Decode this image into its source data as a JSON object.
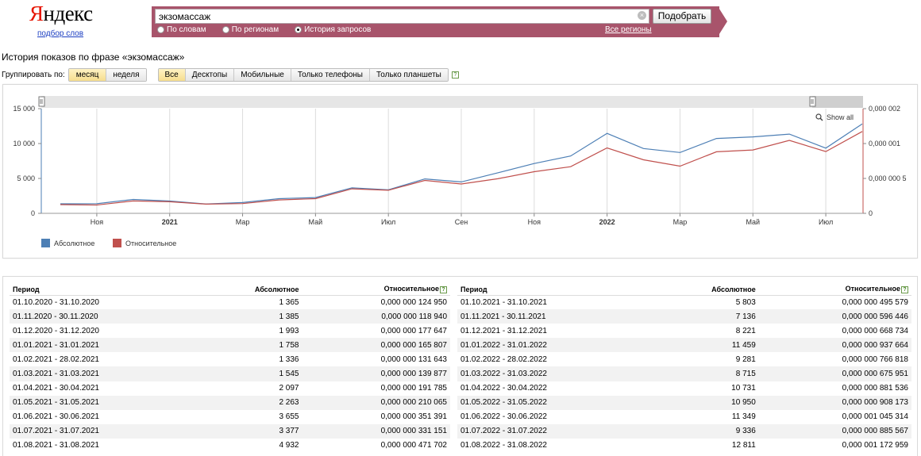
{
  "logo": {
    "text_first": "Я",
    "text_rest": "ндекс",
    "subtitle": "подбор слов"
  },
  "search": {
    "value": "экзомассаж",
    "button": "Подобрать",
    "clear_icon": "×",
    "radios": [
      {
        "label": "По словам",
        "selected": false
      },
      {
        "label": "По регионам",
        "selected": false
      },
      {
        "label": "История запросов",
        "selected": true
      }
    ],
    "regions_link": "Все регионы"
  },
  "page_title": "История показов по фразе «экзомассаж»",
  "group": {
    "label": "Группировать по:",
    "period_options": [
      {
        "label": "месяц",
        "active": true
      },
      {
        "label": "неделя",
        "active": false
      }
    ],
    "device_options": [
      {
        "label": "Все",
        "active": true
      },
      {
        "label": "Десктопы",
        "active": false
      },
      {
        "label": "Мобильные",
        "active": false
      },
      {
        "label": "Только телефоны",
        "active": false
      },
      {
        "label": "Только планшеты",
        "active": false
      }
    ],
    "help": "?"
  },
  "chart_data": {
    "type": "line",
    "show_all_label": "Show all",
    "y_left_ticks": [
      "0",
      "5 000",
      "10 000",
      "15 000"
    ],
    "y_left_range": [
      0,
      15000
    ],
    "y_right_ticks": [
      "0",
      "0,000 000 5",
      "0,000 001",
      "0,000 002"
    ],
    "y_right_range": [
      0,
      1.5e-06
    ],
    "x_ticks": [
      "Ноя",
      "2021",
      "Мар",
      "Май",
      "Июл",
      "Сен",
      "Ноя",
      "2022",
      "Мар",
      "Май",
      "Июл"
    ],
    "x_tick_bold": [
      false,
      true,
      false,
      false,
      false,
      false,
      false,
      true,
      false,
      false,
      false
    ],
    "categories": [
      "2020-10",
      "2020-11",
      "2020-12",
      "2021-01",
      "2021-02",
      "2021-03",
      "2021-04",
      "2021-05",
      "2021-06",
      "2021-07",
      "2021-08",
      "2021-09",
      "2021-10",
      "2021-11",
      "2021-12",
      "2022-01",
      "2022-02",
      "2022-03",
      "2022-04",
      "2022-05",
      "2022-06",
      "2022-07",
      "2022-08"
    ],
    "series": [
      {
        "name": "Абсолютное",
        "color": "#4d7fb5",
        "values": [
          1365,
          1385,
          1993,
          1758,
          1336,
          1545,
          2097,
          2263,
          3655,
          3377,
          4932,
          4500,
          5803,
          7136,
          8221,
          11459,
          9281,
          8715,
          10731,
          10950,
          11349,
          9336,
          12811
        ]
      },
      {
        "name": "Относительное",
        "color": "#c0504d",
        "values": [
          1.2495e-07,
          1.1894e-07,
          1.77647e-07,
          1.65807e-07,
          1.31643e-07,
          1.39877e-07,
          1.91785e-07,
          2.10065e-07,
          3.51391e-07,
          3.31151e-07,
          4.71702e-07,
          4.2e-07,
          4.95579e-07,
          5.96446e-07,
          6.68734e-07,
          9.37664e-07,
          7.66818e-07,
          6.75951e-07,
          8.81536e-07,
          9.08173e-07,
          1.045314e-06,
          8.85567e-07,
          1.172959e-06
        ]
      }
    ]
  },
  "table": {
    "headers": {
      "period": "Период",
      "absolute": "Абсолютное",
      "relative": "Относительное",
      "help": "?"
    },
    "left_rows": [
      {
        "period": "01.10.2020 - 31.10.2020",
        "absolute": "1 365",
        "relative": "0,000 000 124 950"
      },
      {
        "period": "01.11.2020 - 30.11.2020",
        "absolute": "1 385",
        "relative": "0,000 000 118 940"
      },
      {
        "period": "01.12.2020 - 31.12.2020",
        "absolute": "1 993",
        "relative": "0,000 000 177 647"
      },
      {
        "period": "01.01.2021 - 31.01.2021",
        "absolute": "1 758",
        "relative": "0,000 000 165 807"
      },
      {
        "period": "01.02.2021 - 28.02.2021",
        "absolute": "1 336",
        "relative": "0,000 000 131 643"
      },
      {
        "period": "01.03.2021 - 31.03.2021",
        "absolute": "1 545",
        "relative": "0,000 000 139 877"
      },
      {
        "period": "01.04.2021 - 30.04.2021",
        "absolute": "2 097",
        "relative": "0,000 000 191 785"
      },
      {
        "period": "01.05.2021 - 31.05.2021",
        "absolute": "2 263",
        "relative": "0,000 000 210 065"
      },
      {
        "period": "01.06.2021 - 30.06.2021",
        "absolute": "3 655",
        "relative": "0,000 000 351 391"
      },
      {
        "period": "01.07.2021 - 31.07.2021",
        "absolute": "3 377",
        "relative": "0,000 000 331 151"
      },
      {
        "period": "01.08.2021 - 31.08.2021",
        "absolute": "4 932",
        "relative": "0,000 000 471 702"
      }
    ],
    "right_rows": [
      {
        "period": "01.10.2021 - 31.10.2021",
        "absolute": "5 803",
        "relative": "0,000 000 495 579"
      },
      {
        "period": "01.11.2021 - 30.11.2021",
        "absolute": "7 136",
        "relative": "0,000 000 596 446"
      },
      {
        "period": "01.12.2021 - 31.12.2021",
        "absolute": "8 221",
        "relative": "0,000 000 668 734"
      },
      {
        "period": "01.01.2022 - 31.01.2022",
        "absolute": "11 459",
        "relative": "0,000 000 937 664"
      },
      {
        "period": "01.02.2022 - 28.02.2022",
        "absolute": "9 281",
        "relative": "0,000 000 766 818"
      },
      {
        "period": "01.03.2022 - 31.03.2022",
        "absolute": "8 715",
        "relative": "0,000 000 675 951"
      },
      {
        "period": "01.04.2022 - 30.04.2022",
        "absolute": "10 731",
        "relative": "0,000 000 881 536"
      },
      {
        "period": "01.05.2022 - 31.05.2022",
        "absolute": "10 950",
        "relative": "0,000 000 908 173"
      },
      {
        "period": "01.06.2022 - 30.06.2022",
        "absolute": "11 349",
        "relative": "0,000 001 045 314"
      },
      {
        "period": "01.07.2022 - 31.07.2022",
        "absolute": "9 336",
        "relative": "0,000 000 885 567"
      },
      {
        "period": "01.08.2022 - 31.08.2022",
        "absolute": "12 811",
        "relative": "0,000 001 172 959"
      }
    ]
  }
}
